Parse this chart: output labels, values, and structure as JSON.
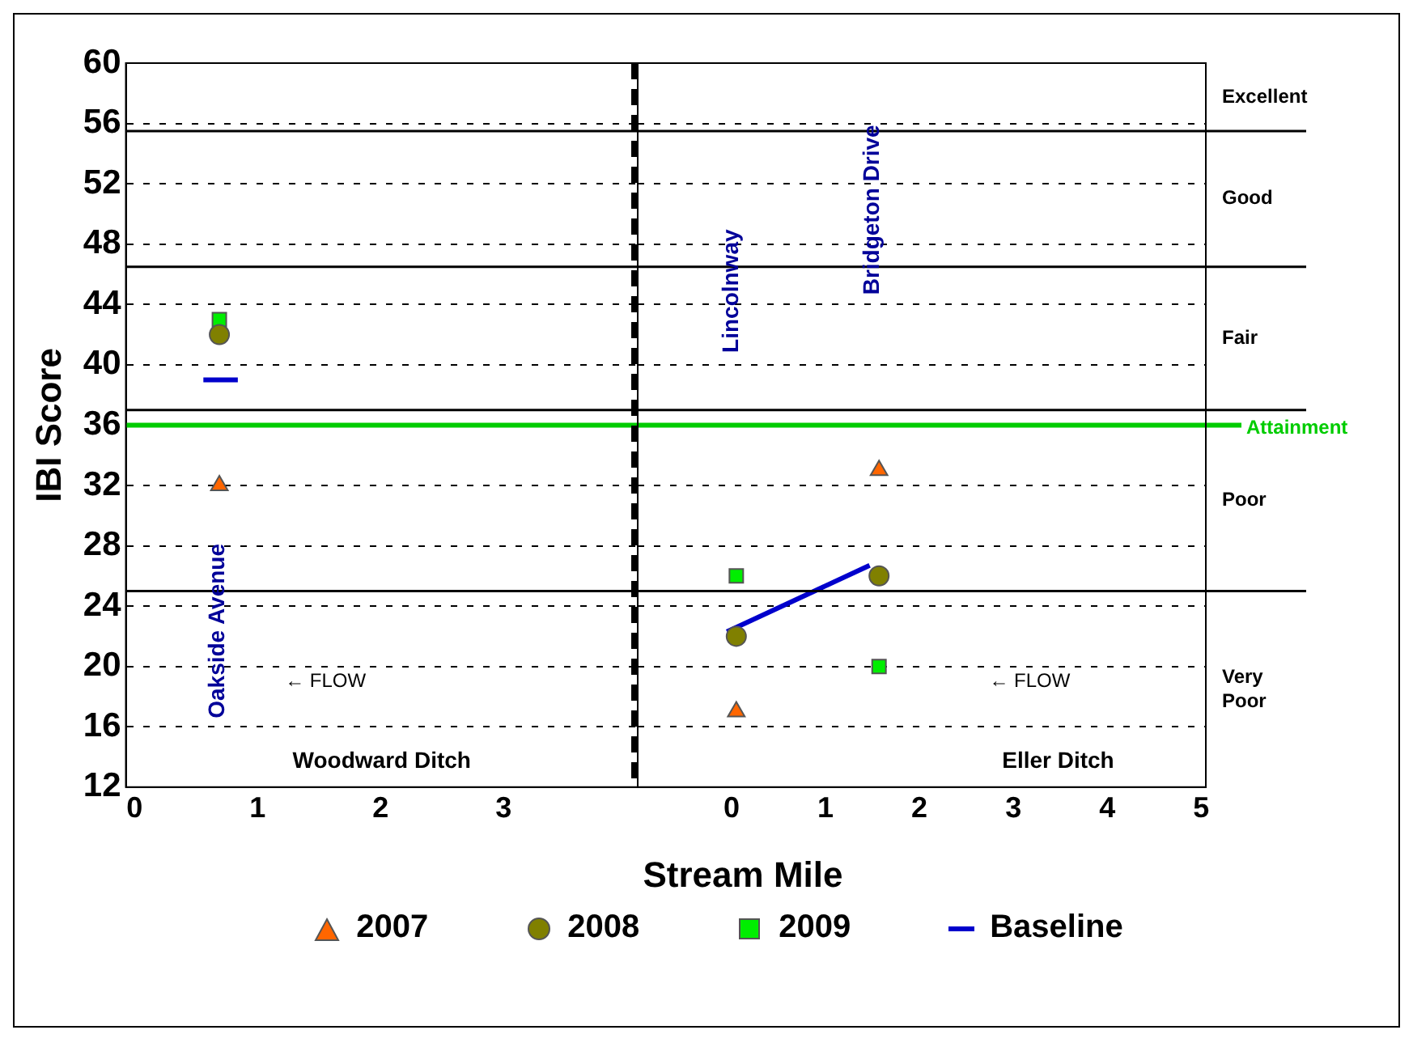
{
  "chart_data": [
    {
      "type": "scatter",
      "xlabel": "Stream Mile",
      "ylabel": "IBI Score",
      "xlim": [
        -0.07,
        4.09
      ],
      "xticks": [
        0,
        1,
        2,
        3
      ],
      "ylim": [
        12,
        60
      ],
      "yticks": [
        12,
        16,
        20,
        24,
        28,
        32,
        36,
        40,
        44,
        48,
        52,
        56,
        60
      ],
      "grid": "y",
      "legend": "bottom",
      "series": [
        {
          "name": "2007",
          "marker": "triangle",
          "color": "#ff6600",
          "x": [
            0.69
          ],
          "values": [
            32
          ]
        },
        {
          "name": "2008",
          "marker": "circle",
          "color": "#808000",
          "x": [
            0.69
          ],
          "values": [
            42
          ]
        },
        {
          "name": "2009",
          "marker": "square",
          "color": "#00ee00",
          "x": [
            0.69
          ],
          "values": [
            43
          ]
        },
        {
          "name": "Baseline",
          "type": "line",
          "marker": "none",
          "color": "#0000cc",
          "x": [
            0.56,
            0.84
          ],
          "values": [
            39,
            39
          ]
        }
      ],
      "ref_lines": [
        {
          "axis": "y",
          "value": 55.5,
          "color": "#000000"
        },
        {
          "axis": "y",
          "value": 46.5,
          "color": "#000000"
        },
        {
          "axis": "y",
          "value": 37,
          "color": "#000000"
        },
        {
          "axis": "y",
          "value": 25,
          "color": "#000000"
        },
        {
          "axis": "y",
          "value": 36,
          "color": "#00cc00"
        },
        {
          "axis": "x",
          "value": 4.09,
          "color": "#000000",
          "line_style": "dashed"
        }
      ],
      "annotations": [
        "Oakside Avenue",
        "← FLOW",
        "Woodward Ditch"
      ]
    },
    {
      "type": "scatter",
      "xlim": [
        -1.0,
        5.05
      ],
      "xticks": [
        0,
        1,
        2,
        3,
        4,
        5
      ],
      "ylim": [
        12,
        60
      ],
      "yticks": [
        12,
        16,
        20,
        24,
        28,
        32,
        36,
        40,
        44,
        48,
        52,
        56,
        60
      ],
      "grid": "y",
      "tick_labels": "x",
      "series": [
        {
          "marker": "triangle",
          "color": "#ff6600",
          "x": [
            0.05,
            1.57
          ],
          "values": [
            17,
            33
          ]
        },
        {
          "marker": "circle",
          "color": "#808000",
          "x": [
            0.05,
            1.57
          ],
          "values": [
            22,
            26
          ]
        },
        {
          "marker": "square",
          "color": "#00ee00",
          "x": [
            0.05,
            1.57
          ],
          "values": [
            26,
            20
          ]
        },
        {
          "type": "line",
          "marker": "none",
          "color": "#0000cc",
          "x": [
            -0.05,
            1.47
          ],
          "values": [
            22.3,
            26.7
          ]
        }
      ],
      "ref_lines": [
        {
          "axis": "y",
          "value": 55.5,
          "color": "#000000"
        },
        {
          "axis": "y",
          "value": 46.5,
          "color": "#000000"
        },
        {
          "axis": "y",
          "value": 37,
          "color": "#000000"
        },
        {
          "axis": "y",
          "value": 25,
          "color": "#000000"
        },
        {
          "axis": "y",
          "value": 36,
          "label": "Attainment",
          "color": "#00cc00"
        }
      ],
      "annotations": [
        "Lincolnway",
        "Bridgeton Drive",
        "← FLOW",
        "Eller Ditch",
        "Excellent",
        "Good",
        "Fair",
        "Poor",
        "Very Poor"
      ]
    }
  ]
}
